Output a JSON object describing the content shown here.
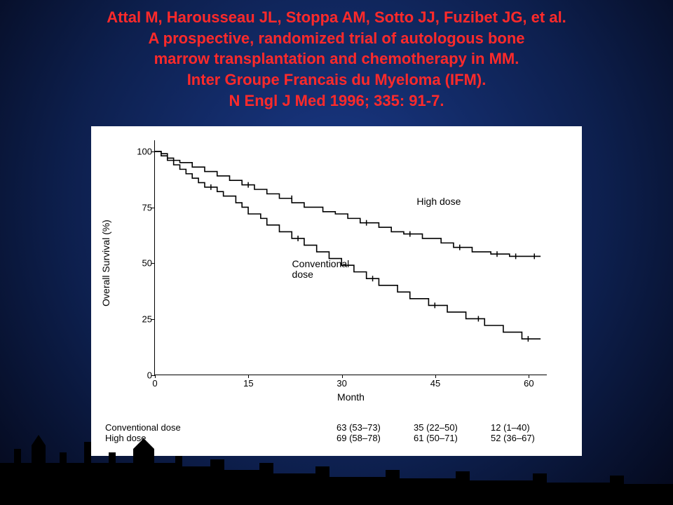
{
  "title": {
    "line1": "Attal M, Harousseau JL, Stoppa AM, Sotto JJ, Fuzibet JG, et al.",
    "line2": "A prospective, randomized trial of autologous bone",
    "line3": "marrow transplantation and chemotherapy in MM.",
    "line4": "Inter Groupe Francais du Myeloma (IFM).",
    "line5": "N Engl J Med 1996; 335: 91-7.",
    "color": "#ff2a2a",
    "fontsize": 22
  },
  "chart": {
    "type": "survival-step",
    "background_color": "#ffffff",
    "axis_color": "#000000",
    "xlabel": "Month",
    "ylabel": "Overall Survival (%)",
    "label_fontsize": 14,
    "tick_fontsize": 13,
    "xlim": [
      0,
      63
    ],
    "ylim": [
      0,
      105
    ],
    "xticks": [
      0,
      15,
      30,
      45,
      60
    ],
    "yticks": [
      0,
      25,
      50,
      75,
      100
    ],
    "series": {
      "high_dose": {
        "label": "High dose",
        "label_pos": {
          "x_month": 42,
          "y_pct": 80
        },
        "color": "#000000",
        "line_width": 1.6,
        "points": [
          [
            0,
            100
          ],
          [
            1,
            100
          ],
          [
            1,
            99
          ],
          [
            2,
            99
          ],
          [
            2,
            97
          ],
          [
            3,
            97
          ],
          [
            3,
            96
          ],
          [
            4,
            96
          ],
          [
            4,
            95
          ],
          [
            6,
            95
          ],
          [
            6,
            93
          ],
          [
            8,
            93
          ],
          [
            8,
            91
          ],
          [
            10,
            91
          ],
          [
            10,
            89
          ],
          [
            12,
            89
          ],
          [
            12,
            87
          ],
          [
            14,
            87
          ],
          [
            14,
            85
          ],
          [
            16,
            85
          ],
          [
            16,
            83
          ],
          [
            18,
            83
          ],
          [
            18,
            81
          ],
          [
            20,
            81
          ],
          [
            20,
            79
          ],
          [
            22,
            79
          ],
          [
            22,
            77
          ],
          [
            24,
            77
          ],
          [
            24,
            75
          ],
          [
            27,
            75
          ],
          [
            27,
            73
          ],
          [
            29,
            73
          ],
          [
            29,
            72
          ],
          [
            31,
            72
          ],
          [
            31,
            70
          ],
          [
            33,
            70
          ],
          [
            33,
            68
          ],
          [
            36,
            68
          ],
          [
            36,
            66
          ],
          [
            38,
            66
          ],
          [
            38,
            64
          ],
          [
            40,
            64
          ],
          [
            40,
            63
          ],
          [
            43,
            63
          ],
          [
            43,
            61
          ],
          [
            46,
            61
          ],
          [
            46,
            59
          ],
          [
            48,
            59
          ],
          [
            48,
            57
          ],
          [
            51,
            57
          ],
          [
            51,
            55
          ],
          [
            54,
            55
          ],
          [
            54,
            54
          ],
          [
            57,
            54
          ],
          [
            57,
            53
          ],
          [
            60,
            53
          ],
          [
            60,
            53
          ],
          [
            62,
            53
          ]
        ],
        "censor_marks": [
          [
            15,
            85
          ],
          [
            22,
            79
          ],
          [
            34,
            68
          ],
          [
            41,
            63
          ],
          [
            49,
            57
          ],
          [
            55,
            54
          ],
          [
            58,
            53
          ],
          [
            61,
            53
          ]
        ]
      },
      "conventional": {
        "label": "Conventional\ndose",
        "label_pos": {
          "x_month": 22,
          "y_pct": 52
        },
        "color": "#000000",
        "line_width": 1.6,
        "points": [
          [
            0,
            100
          ],
          [
            1,
            100
          ],
          [
            1,
            98
          ],
          [
            2,
            98
          ],
          [
            2,
            96
          ],
          [
            3,
            96
          ],
          [
            3,
            94
          ],
          [
            4,
            94
          ],
          [
            4,
            92
          ],
          [
            5,
            92
          ],
          [
            5,
            90
          ],
          [
            6,
            90
          ],
          [
            6,
            88
          ],
          [
            7,
            88
          ],
          [
            7,
            86
          ],
          [
            8,
            86
          ],
          [
            8,
            84
          ],
          [
            10,
            84
          ],
          [
            10,
            82
          ],
          [
            11,
            82
          ],
          [
            11,
            80
          ],
          [
            13,
            80
          ],
          [
            13,
            77
          ],
          [
            14,
            77
          ],
          [
            14,
            75
          ],
          [
            15,
            75
          ],
          [
            15,
            72
          ],
          [
            17,
            72
          ],
          [
            17,
            70
          ],
          [
            18,
            70
          ],
          [
            18,
            67
          ],
          [
            20,
            67
          ],
          [
            20,
            64
          ],
          [
            22,
            64
          ],
          [
            22,
            61
          ],
          [
            24,
            61
          ],
          [
            24,
            58
          ],
          [
            26,
            58
          ],
          [
            26,
            55
          ],
          [
            28,
            55
          ],
          [
            28,
            52
          ],
          [
            30,
            52
          ],
          [
            30,
            49
          ],
          [
            32,
            49
          ],
          [
            32,
            46
          ],
          [
            34,
            46
          ],
          [
            34,
            43
          ],
          [
            36,
            43
          ],
          [
            36,
            40
          ],
          [
            39,
            40
          ],
          [
            39,
            37
          ],
          [
            41,
            37
          ],
          [
            41,
            34
          ],
          [
            44,
            34
          ],
          [
            44,
            31
          ],
          [
            47,
            31
          ],
          [
            47,
            28
          ],
          [
            50,
            28
          ],
          [
            50,
            25
          ],
          [
            53,
            25
          ],
          [
            53,
            22
          ],
          [
            56,
            22
          ],
          [
            56,
            19
          ],
          [
            59,
            19
          ],
          [
            59,
            16
          ],
          [
            61,
            16
          ],
          [
            62,
            16
          ]
        ],
        "censor_marks": [
          [
            9,
            84
          ],
          [
            23,
            61
          ],
          [
            35,
            43
          ],
          [
            45,
            31
          ],
          [
            52,
            25
          ],
          [
            60,
            16
          ]
        ]
      }
    },
    "risk_table": {
      "rows": [
        {
          "label": "Conventional dose",
          "cells": [
            "63 (53–73)",
            "35 (22–50)",
            "12 (1–40)"
          ]
        },
        {
          "label": "High dose",
          "cells": [
            "69 (58–78)",
            "61 (50–71)",
            "52 (36–67)"
          ]
        }
      ]
    }
  },
  "silhouette_color": "#000000"
}
